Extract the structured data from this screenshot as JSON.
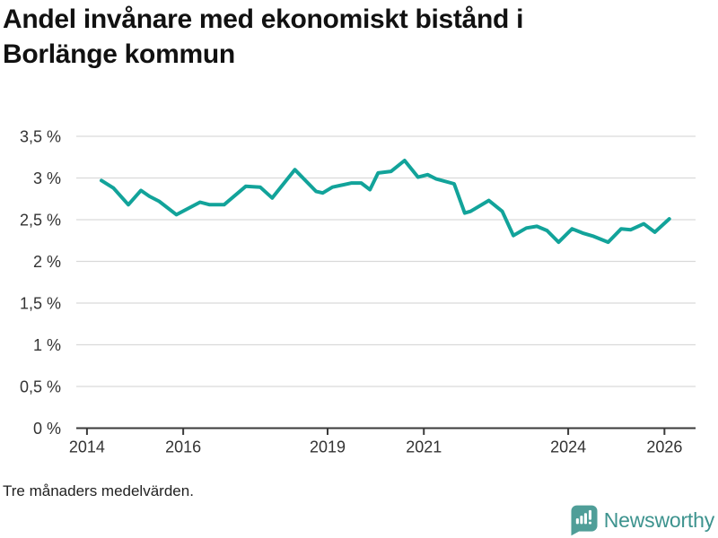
{
  "header": {
    "title": "Andel invånare med ekonomiskt bistånd i Borlänge kommun",
    "title_line1": "Andel invånare med ekonomiskt bistånd i",
    "title_line2": "Borlänge kommun"
  },
  "footnote": "Tre månaders medelvärden.",
  "branding": {
    "name": "Newsworthy",
    "logo_icon": "bar-chart-speech-bubble-icon",
    "text_color": "#3d938e",
    "bubble_color": "#4f9e98"
  },
  "colors": {
    "line": "#12a39a",
    "grid": "#d9d9d9",
    "axis": "#3a3a3a",
    "tick_text": "#333333",
    "background": "#ffffff"
  },
  "chart_data": {
    "type": "line",
    "title": "Andel invånare med ekonomiskt bistånd i Borlänge kommun",
    "xlabel": "",
    "ylabel": "",
    "unit": "%",
    "grid": "horizontal",
    "legend": "none",
    "x_axis": {
      "min": 2013.78,
      "max": 2026.65,
      "ticks": [
        {
          "value": 2014,
          "label": "2014"
        },
        {
          "value": 2016,
          "label": "2016"
        },
        {
          "value": 2019,
          "label": "2019"
        },
        {
          "value": 2021,
          "label": "2021"
        },
        {
          "value": 2024,
          "label": "2024"
        },
        {
          "value": 2026,
          "label": "2026"
        }
      ]
    },
    "y_axis": {
      "min": 0,
      "max": 3.5,
      "ticks": [
        {
          "value": 3.5,
          "label": "3,5 %"
        },
        {
          "value": 3,
          "label": "3 %"
        },
        {
          "value": 2.5,
          "label": "2,5 %"
        },
        {
          "value": 2,
          "label": "2 %"
        },
        {
          "value": 1.5,
          "label": "1,5 %"
        },
        {
          "value": 1,
          "label": "1 %"
        },
        {
          "value": 0.5,
          "label": "0,5 %"
        },
        {
          "value": 0,
          "label": "0 %"
        }
      ]
    },
    "series": [
      {
        "name": "Andel invånare med ekonomiskt bistånd",
        "points": [
          [
            2014.3,
            2.97
          ],
          [
            2014.55,
            2.88
          ],
          [
            2014.86,
            2.68
          ],
          [
            2015.12,
            2.85
          ],
          [
            2015.3,
            2.78
          ],
          [
            2015.5,
            2.72
          ],
          [
            2015.86,
            2.56
          ],
          [
            2016.35,
            2.71
          ],
          [
            2016.55,
            2.68
          ],
          [
            2016.85,
            2.68
          ],
          [
            2017.3,
            2.9
          ],
          [
            2017.6,
            2.89
          ],
          [
            2017.85,
            2.76
          ],
          [
            2018.32,
            3.1
          ],
          [
            2018.76,
            2.84
          ],
          [
            2018.9,
            2.82
          ],
          [
            2019.1,
            2.89
          ],
          [
            2019.5,
            2.94
          ],
          [
            2019.7,
            2.94
          ],
          [
            2019.88,
            2.86
          ],
          [
            2020.05,
            3.06
          ],
          [
            2020.32,
            3.08
          ],
          [
            2020.6,
            3.21
          ],
          [
            2020.88,
            3.01
          ],
          [
            2021.08,
            3.04
          ],
          [
            2021.25,
            2.99
          ],
          [
            2021.63,
            2.93
          ],
          [
            2021.85,
            2.58
          ],
          [
            2021.97,
            2.6
          ],
          [
            2022.35,
            2.73
          ],
          [
            2022.63,
            2.6
          ],
          [
            2022.86,
            2.31
          ],
          [
            2023.13,
            2.4
          ],
          [
            2023.35,
            2.42
          ],
          [
            2023.56,
            2.37
          ],
          [
            2023.8,
            2.23
          ],
          [
            2024.08,
            2.39
          ],
          [
            2024.3,
            2.34
          ],
          [
            2024.53,
            2.3
          ],
          [
            2024.83,
            2.23
          ],
          [
            2025.1,
            2.39
          ],
          [
            2025.3,
            2.38
          ],
          [
            2025.57,
            2.45
          ],
          [
            2025.8,
            2.35
          ],
          [
            2026.1,
            2.51
          ]
        ]
      }
    ]
  }
}
